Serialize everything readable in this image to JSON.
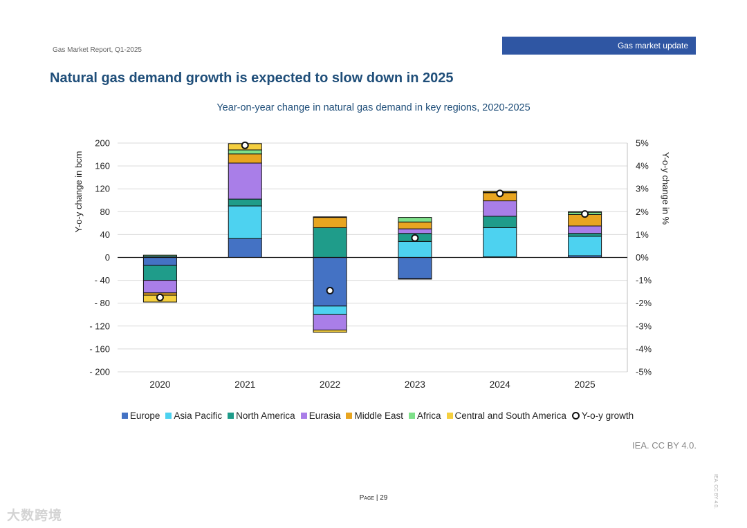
{
  "header": {
    "report_label": "Gas Market Report, Q1-2025",
    "section_tag": "Gas market update"
  },
  "page_title": "Natural gas demand growth is expected to slow down in 2025",
  "footer": {
    "credit": "IEA. CC BY 4.0.",
    "page_word": "Page",
    "page_number": "| 29",
    "side_credit": "IEA. CC BY 4.0.",
    "watermark": "大数跨境"
  },
  "colors": {
    "Europe": "#4472c4",
    "Asia Pacific": "#4dd2f0",
    "North America": "#1f9c8a",
    "Eurasia": "#a97ee8",
    "Middle East": "#e8a520",
    "Africa": "#7ee08a",
    "Central and South America": "#f5cf3f",
    "Y-o-y growth": "#111111"
  },
  "chart_data": {
    "type": "bar",
    "stacked": true,
    "title": "Year-on-year change in natural gas demand in key regions, 2020-2025",
    "ylabel": "Y-o-y change in bcm",
    "ylabel_right": "Y-o-y change in %",
    "ylim": [
      -200,
      200
    ],
    "ylim_right": [
      -5,
      5
    ],
    "yticks": [
      "200",
      "160",
      "120",
      "80",
      "40",
      "0",
      "- 40",
      "- 80",
      "- 120",
      "- 160",
      "- 200"
    ],
    "yticks_right": [
      "5%",
      "4%",
      "3%",
      "2%",
      "1%",
      "0%",
      "-1%",
      "-2%",
      "-3%",
      "-4%",
      "-5%"
    ],
    "grid": true,
    "legend_position": "bottom",
    "categories": [
      "2020",
      "2021",
      "2022",
      "2023",
      "2024",
      "2025"
    ],
    "series": [
      {
        "name": "Europe",
        "values": [
          -14,
          33,
          -85,
          -37,
          1,
          3
        ]
      },
      {
        "name": "Asia Pacific",
        "values": [
          2,
          57,
          -15,
          28,
          51,
          34
        ]
      },
      {
        "name": "North America",
        "values": [
          -26,
          12,
          52,
          14,
          20,
          5
        ]
      },
      {
        "name": "Eurasia",
        "values": [
          -22,
          63,
          -27,
          8,
          27,
          13
        ]
      },
      {
        "name": "Middle East",
        "values": [
          -4,
          16,
          18,
          12,
          14,
          20
        ]
      },
      {
        "name": "Africa",
        "values": [
          2,
          7,
          1,
          8,
          1,
          4
        ]
      },
      {
        "name": "Central and South America",
        "values": [
          -12,
          11,
          -4,
          -1,
          2,
          1
        ]
      }
    ],
    "line": {
      "name": "Y-o-y growth",
      "axis": "right",
      "values": [
        -1.75,
        4.9,
        -1.45,
        0.85,
        2.8,
        1.9
      ]
    }
  }
}
